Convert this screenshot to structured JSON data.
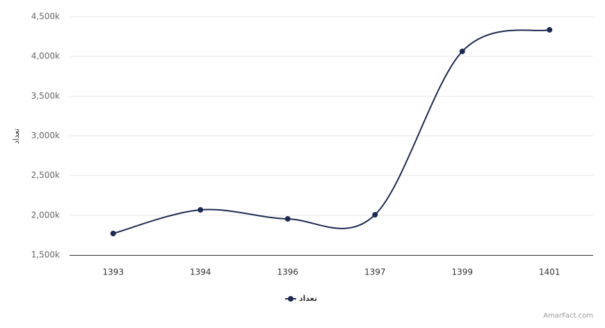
{
  "chart_data": {
    "type": "line",
    "y_axis_label": "تعداد",
    "categories": [
      "1393",
      "1394",
      "1396",
      "1397",
      "1399",
      "1401"
    ],
    "series": [
      {
        "name": "تعداد",
        "color": "#1c2a4f",
        "values": [
          1771000,
          2068000,
          1955000,
          2007000,
          4063000,
          4334000
        ]
      }
    ],
    "ylim": [
      1500000,
      4500000
    ],
    "yticks": [
      {
        "value": 1500000,
        "label": "1,500k"
      },
      {
        "value": 2000000,
        "label": "2,000k"
      },
      {
        "value": 2500000,
        "label": "2,500k"
      },
      {
        "value": 3000000,
        "label": "3,000k"
      },
      {
        "value": 3500000,
        "label": "3,500k"
      },
      {
        "value": 4000000,
        "label": "4,000k"
      },
      {
        "value": 4500000,
        "label": "4,500k"
      }
    ],
    "grid": true,
    "legend": "bottom",
    "credit": "AmarFact.com"
  }
}
